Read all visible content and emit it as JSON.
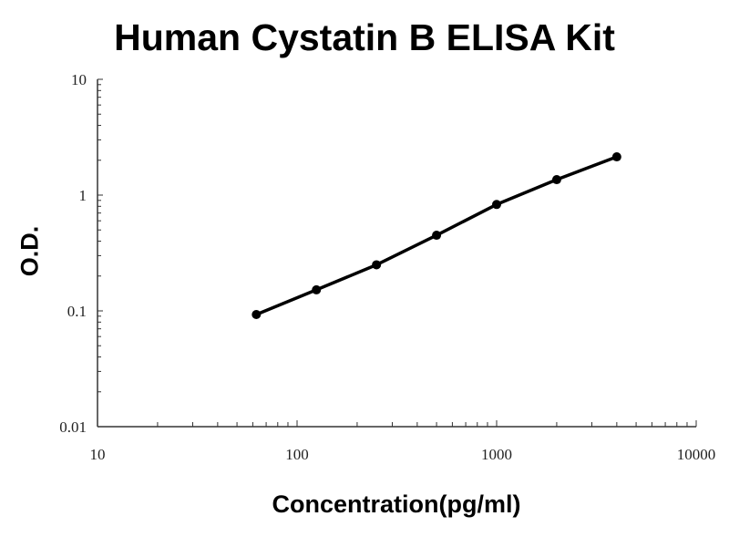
{
  "chart_data": {
    "type": "line",
    "title": "Human Cystatin B ELISA Kit",
    "xlabel": "Concentration(pg/ml)",
    "ylabel": "O.D.",
    "x_scale": "log",
    "y_scale": "log",
    "xlim": [
      10,
      10000
    ],
    "ylim": [
      0.01,
      10
    ],
    "x_ticks": [
      "10",
      "100",
      "1000",
      "10000"
    ],
    "y_ticks": [
      "0.01",
      "0.1",
      "1",
      "10"
    ],
    "grid": false,
    "series": [
      {
        "x": [
          62.5,
          125,
          250,
          500,
          1000,
          2000,
          4000
        ],
        "y": [
          0.093,
          0.152,
          0.25,
          0.45,
          0.83,
          1.36,
          2.14
        ]
      }
    ],
    "color": "#000000"
  }
}
